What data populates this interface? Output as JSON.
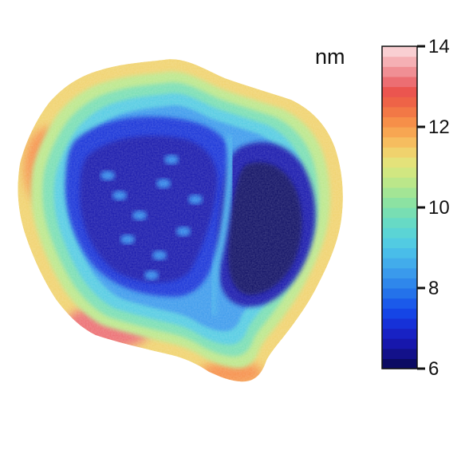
{
  "chart_data": {
    "type": "heatmap",
    "title": "",
    "colorbar": {
      "unit_label": "nm",
      "range": [
        6,
        14
      ],
      "ticks": [
        14,
        12,
        10,
        8,
        6
      ],
      "levels": [
        6.0,
        6.25,
        6.5,
        6.75,
        7.0,
        7.25,
        7.5,
        7.75,
        8.0,
        8.25,
        8.5,
        8.75,
        9.0,
        9.25,
        9.5,
        9.75,
        10.0,
        10.25,
        10.5,
        10.75,
        11.0,
        11.25,
        11.5,
        11.75,
        12.0,
        12.25,
        12.5,
        12.75,
        13.0,
        13.25,
        13.5,
        13.75
      ],
      "colors": [
        "#0b0a63",
        "#13118a",
        "#1717ac",
        "#1822c4",
        "#1631d8",
        "#1545e6",
        "#1b5aea",
        "#2472ea",
        "#2f87eb",
        "#3a9aec",
        "#42aceb",
        "#49bde9",
        "#52cbe2",
        "#5bd4d5",
        "#67dac5",
        "#78deb3",
        "#8ce2a2",
        "#a3e595",
        "#bbe78a",
        "#d1e781",
        "#e4e27a",
        "#f0d26d",
        "#f6bd5f",
        "#f7a652",
        "#f68f49",
        "#f27846",
        "#ee6347",
        "#eb554f",
        "#ec6e72",
        "#f08f94",
        "#f5b0b4",
        "#f9cfd2"
      ]
    },
    "map": {
      "outer_min_nm": 6.1,
      "outer_max_nm": 13.2,
      "regions": [
        {
          "name": "left-lobe-core",
          "approx_height_nm": 7.0
        },
        {
          "name": "right-lobe-core",
          "approx_height_nm": 6.5
        },
        {
          "name": "rim",
          "approx_height_nm": 10.5
        },
        {
          "name": "lower-left-edge",
          "approx_height_nm": 12.8
        }
      ]
    }
  }
}
